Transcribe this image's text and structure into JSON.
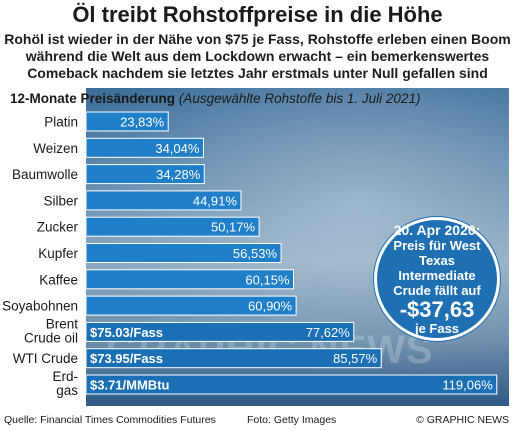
{
  "header": {
    "title": "Öl treibt Rohstoffpreise in die Höhe",
    "subtitle": "Rohöl ist wieder in der Nähe von $75 je Fass, Rohstoffe erleben einen Boom während die Welt aus dem Lockdown erwacht – ein bemerkenswertes Comeback nachdem sie letztes Jahr erstmals unter Null gefallen sind"
  },
  "chart_data": {
    "type": "bar",
    "orientation": "horizontal",
    "title": "12-Monate Preisänderung",
    "subtitle": "(Ausgewählte  Rohstoffe bis 1. Juli 2021)",
    "categories": [
      "Platin",
      "Weizen",
      "Baumwolle",
      "Silber",
      "Zucker",
      "Kupfer",
      "Kaffee",
      "Soyabohnen",
      "Brent Crude oil",
      "WTI Crude",
      "Erd-gas"
    ],
    "values": [
      23.83,
      34.04,
      34.28,
      44.91,
      50.17,
      56.53,
      60.15,
      60.9,
      77.62,
      85.57,
      119.06
    ],
    "value_labels": [
      "23,83%",
      "34,04%",
      "34,28%",
      "44,91%",
      "50,17%",
      "56,53%",
      "60,15%",
      "60,90%",
      "77,62%",
      "85,57%",
      "119,06%"
    ],
    "price_labels": [
      "",
      "",
      "",
      "",
      "",
      "",
      "",
      "",
      "$75.03/Fass",
      "$73.95/Fass",
      "$3.71/MMBtu"
    ],
    "xlim": [
      0,
      120
    ],
    "colors": {
      "bar": "#1f7fc8",
      "bar_highlight": "#1a6fb5",
      "label_bg": "#ffffff"
    }
  },
  "callout": {
    "date": "20. Apr  2020:",
    "text": "Preis für West Texas Intermediate Crude fällt auf",
    "value": "-$37,63",
    "unit": "je Fass"
  },
  "watermark": "GRAPHIC NEWS",
  "footer": {
    "source": "Quelle: Financial Times Commodities Futures",
    "photo": "Foto: Getty Images",
    "copyright": "© GRAPHIC NEWS"
  }
}
